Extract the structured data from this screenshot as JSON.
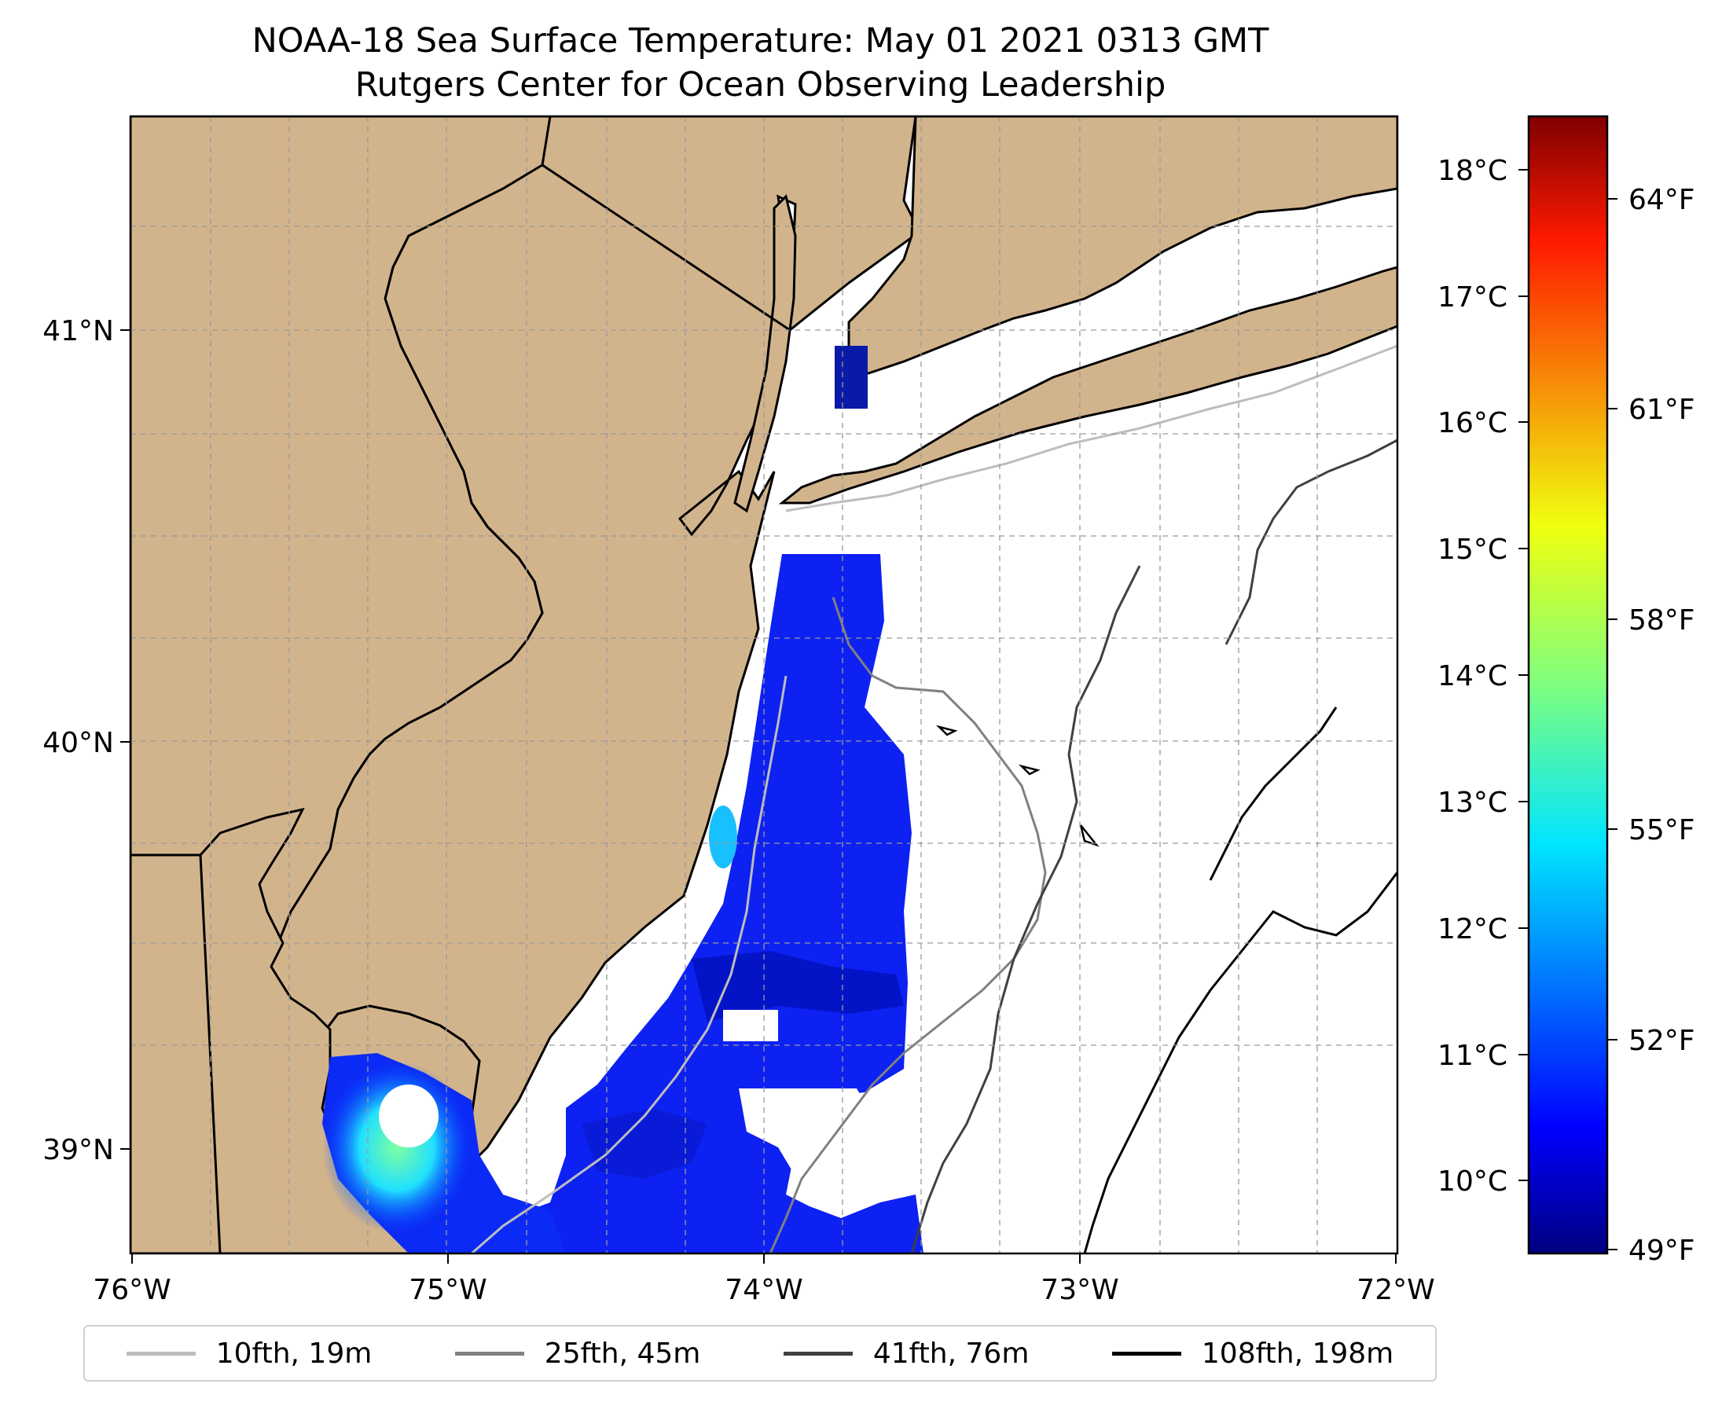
{
  "title": "NOAA-18 Sea Surface Temperature: May 01 2021 0313 GMT",
  "subtitle": "Rutgers Center for Ocean Observing Leadership",
  "map": {
    "lon_range": [
      -76,
      -72
    ],
    "lat_range": [
      38.7,
      41.52
    ],
    "land_color": "#d2b48c",
    "ocean_color": "#ffffff",
    "grid": true,
    "lon_ticks": [
      "76°W",
      "75°W",
      "74°W",
      "73°W",
      "72°W"
    ],
    "lat_ticks": [
      "39°N",
      "40°N",
      "41°N"
    ]
  },
  "colorbar": {
    "colormap": "jet",
    "celsius_ticks": [
      "10°C",
      "11°C",
      "12°C",
      "13°C",
      "14°C",
      "15°C",
      "16°C",
      "17°C",
      "18°C"
    ],
    "fahrenheit_ticks": [
      "49°F",
      "52°F",
      "55°F",
      "58°F",
      "61°F",
      "64°F"
    ],
    "range_celsius": [
      9.5,
      18.5
    ]
  },
  "legend": {
    "placement": "bottom",
    "items": [
      {
        "label": "10fth, 19m",
        "color": "#bdbdbd"
      },
      {
        "label": "25fth, 45m",
        "color": "#808080"
      },
      {
        "label": "41fth, 76m",
        "color": "#404040"
      },
      {
        "label": "108fth, 198m",
        "color": "#000000"
      }
    ]
  }
}
